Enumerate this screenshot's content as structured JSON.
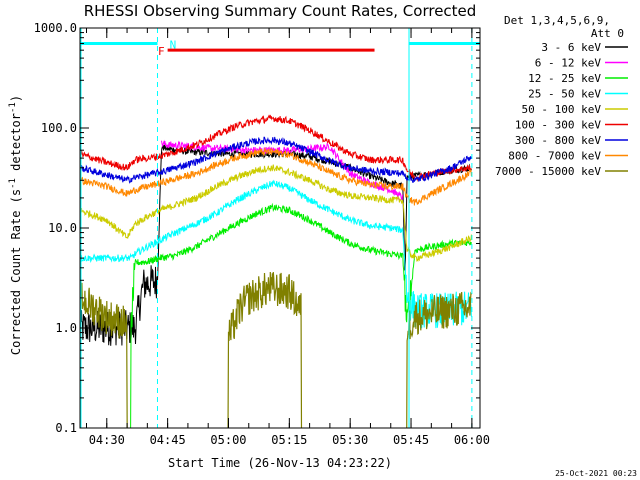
{
  "chart_data": {
    "type": "line",
    "title": "RHESSI Observing Summary Count Rates, Corrected",
    "xlabel": "Start Time (26-Nov-13 04:23:22)",
    "ylabel_main": "Corrected Count Rate (s",
    "ylabel_sup1": "-1",
    "ylabel_mid": " detector",
    "ylabel_sup2": "-1",
    "ylabel_end": ")",
    "yscale": "log",
    "ylim": [
      0.1,
      1000
    ],
    "xlim_minutes": [
      263.4,
      362
    ],
    "yticks": [
      {
        "v": 0.1,
        "label": "0.1"
      },
      {
        "v": 1,
        "label": "1.0"
      },
      {
        "v": 10,
        "label": "10.0"
      },
      {
        "v": 100,
        "label": "100.0"
      },
      {
        "v": 1000,
        "label": "1000.0"
      }
    ],
    "xticks": [
      {
        "m": 270,
        "label": "04:30"
      },
      {
        "m": 285,
        "label": "04:45"
      },
      {
        "m": 300,
        "label": "05:00"
      },
      {
        "m": 315,
        "label": "05:15"
      },
      {
        "m": 330,
        "label": "05:30"
      },
      {
        "m": 345,
        "label": "05:45"
      },
      {
        "m": 360,
        "label": "06:00"
      }
    ],
    "legend": {
      "header": [
        "Det 1,3,4,5,6,9,",
        "Att 0"
      ],
      "entries": [
        {
          "name": "3 - 6 keV",
          "color": "#000000"
        },
        {
          "name": "6 - 12 keV",
          "color": "#ff00ff"
        },
        {
          "name": "12 - 25 keV",
          "color": "#00ee00"
        },
        {
          "name": "25 - 50 keV",
          "color": "#00ffff"
        },
        {
          "name": "50 - 100 keV",
          "color": "#cccc00"
        },
        {
          "name": "100 - 300 keV",
          "color": "#ee0000"
        },
        {
          "name": "300 - 800 keV",
          "color": "#0000dd"
        },
        {
          "name": "800 - 7000 keV",
          "color": "#ff8800"
        },
        {
          "name": "7000 - 15000 keV",
          "color": "#808000"
        }
      ]
    },
    "annotations": {
      "flag_F_label": "F",
      "flag_N_label": "N",
      "flag_F": {
        "start": 285,
        "end": 336,
        "y": 600,
        "color": "#ee0000"
      },
      "flag_N": {
        "segments": [
          [
            263.4,
            282.5
          ],
          [
            344.5,
            362
          ]
        ],
        "y": 700,
        "color": "#00ffff"
      },
      "dashed_lines": [
        282.5,
        360
      ]
    },
    "series": [
      {
        "name": "3 - 6 keV",
        "color": "#000000",
        "x": [
          263.4,
          270,
          275,
          277,
          279,
          280,
          282.5,
          283.5,
          285,
          290,
          300,
          310,
          315,
          320,
          325,
          330,
          335,
          340,
          343,
          343.5,
          344,
          346,
          350,
          355,
          360
        ],
        "y": [
          1,
          1,
          1,
          1,
          2.7,
          2.8,
          3.0,
          65,
          62,
          58,
          55,
          55,
          55,
          52,
          46,
          40,
          33,
          28,
          26,
          3,
          32,
          33,
          35,
          38,
          40
        ]
      },
      {
        "name": "6 - 12 keV",
        "color": "#ff00ff",
        "x": [
          283.5,
          285,
          290,
          295,
          300,
          305,
          310,
          315,
          320,
          325,
          330,
          335,
          340,
          343
        ],
        "y": [
          70,
          68,
          66,
          63,
          62,
          60,
          60,
          60,
          62,
          65,
          35,
          28,
          24,
          20
        ]
      },
      {
        "name": "12 - 25 keV",
        "color": "#00ee00",
        "x": [
          263.4,
          275,
          276,
          277,
          280,
          283,
          287,
          292,
          297,
          302,
          307,
          311,
          315,
          320,
          325,
          330,
          335,
          340,
          343,
          344,
          346,
          350,
          355,
          360
        ],
        "y": [
          0,
          0,
          1,
          4.5,
          4.6,
          5.0,
          5.3,
          6.5,
          8.5,
          11,
          14,
          16,
          15,
          12,
          9,
          7,
          6,
          5.5,
          5.2,
          1,
          6,
          6.5,
          7,
          7.2
        ]
      },
      {
        "name": "25 - 50 keV",
        "color": "#00ffff",
        "x": [
          263.4,
          276,
          277,
          280,
          283,
          287,
          292,
          297,
          302,
          307,
          311,
          315,
          320,
          325,
          330,
          335,
          340,
          343,
          344,
          346,
          350,
          355,
          360
        ],
        "y": [
          5,
          5,
          5.5,
          6.5,
          7.5,
          9,
          11,
          14,
          19,
          24,
          28,
          25,
          19,
          15,
          12,
          10.5,
          10,
          9.5,
          2,
          1.5,
          1.5,
          1.5,
          1.6
        ]
      },
      {
        "name": "50 - 100 keV",
        "color": "#cccc00",
        "x": [
          263.4,
          270,
          275,
          277,
          280,
          283,
          287,
          292,
          297,
          302,
          307,
          311,
          315,
          320,
          325,
          330,
          335,
          340,
          343,
          344,
          346,
          350,
          355,
          360
        ],
        "y": [
          15,
          12,
          8,
          11,
          13,
          15,
          17,
          20,
          26,
          32,
          38,
          40,
          36,
          30,
          24,
          21,
          20,
          19,
          19,
          6,
          5,
          5.5,
          6.5,
          8
        ]
      },
      {
        "name": "100 - 300 keV",
        "color": "#ee0000",
        "x": [
          263.4,
          270,
          275,
          277,
          280,
          283,
          287,
          292,
          297,
          302,
          307,
          311,
          315,
          320,
          325,
          330,
          335,
          340,
          343,
          344,
          346,
          350,
          355,
          360
        ],
        "y": [
          55,
          45,
          40,
          48,
          50,
          52,
          58,
          68,
          85,
          105,
          118,
          125,
          118,
          95,
          72,
          55,
          48,
          48,
          48,
          38,
          32,
          35,
          38,
          40
        ]
      },
      {
        "name": "300 - 800 keV",
        "color": "#0000dd",
        "x": [
          263.4,
          270,
          275,
          277,
          280,
          283,
          287,
          292,
          297,
          302,
          307,
          311,
          315,
          320,
          325,
          330,
          335,
          340,
          343,
          344,
          346,
          350,
          355,
          360
        ],
        "y": [
          40,
          34,
          30,
          32,
          34,
          36,
          40,
          46,
          56,
          66,
          74,
          76,
          70,
          58,
          47,
          40,
          37,
          36,
          35,
          32,
          30,
          34,
          40,
          52
        ]
      },
      {
        "name": "800 - 7000 keV",
        "color": "#ff8800",
        "x": [
          263.4,
          270,
          275,
          277,
          280,
          283,
          287,
          292,
          297,
          302,
          307,
          311,
          315,
          320,
          325,
          330,
          335,
          340,
          343,
          344,
          346,
          350,
          355,
          360
        ],
        "y": [
          30,
          26,
          22,
          24,
          26,
          28,
          31,
          35,
          43,
          51,
          57,
          58,
          54,
          45,
          36,
          30,
          27,
          26,
          26,
          20,
          18,
          22,
          28,
          36
        ]
      },
      {
        "name": "7000 - 15000 keV",
        "color": "#808000",
        "x": [
          263.4,
          270,
          275,
          280,
          290,
          300,
          303,
          305,
          310,
          315,
          318,
          320,
          330,
          340,
          343,
          344,
          346,
          350,
          355,
          360
        ],
        "y": [
          2.0,
          1.3,
          1.1,
          0,
          0,
          0.8,
          1.6,
          2.0,
          2.5,
          2.3,
          1.5,
          0,
          0,
          0,
          0,
          1.0,
          1.3,
          1.4,
          1.5,
          1.6
        ]
      }
    ],
    "footnote": "25-Oct-2021 00:23"
  }
}
